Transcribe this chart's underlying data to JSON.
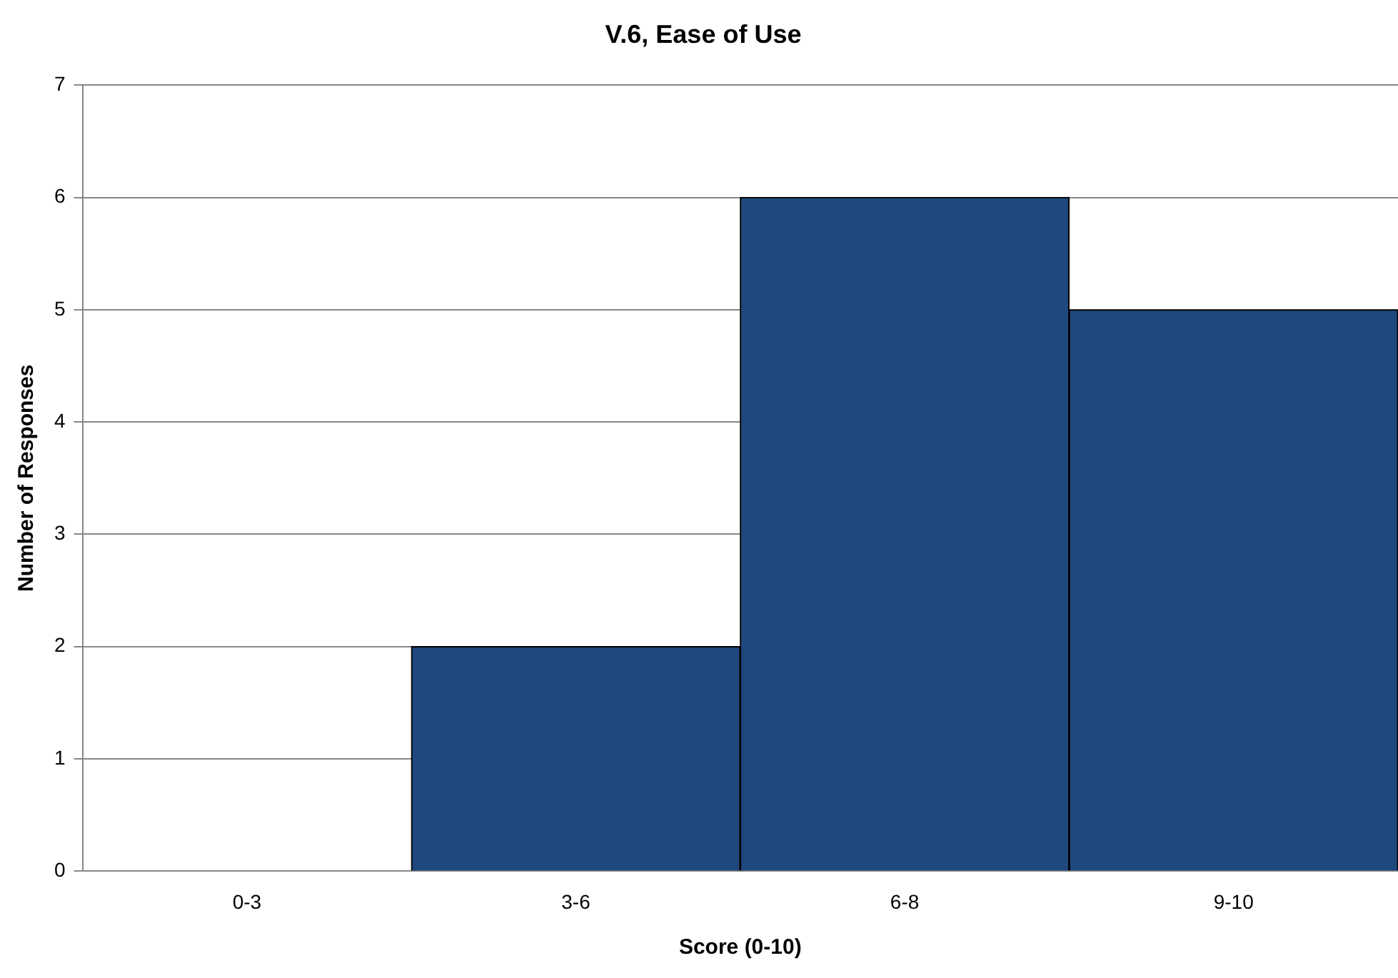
{
  "chart_data": {
    "type": "bar",
    "title": "V.6, Ease of Use",
    "xlabel": "Score (0-10)",
    "ylabel": "Number of Responses",
    "categories": [
      "0-3",
      "3-6",
      "6-8",
      "9-10"
    ],
    "values": [
      0,
      2,
      6,
      5
    ],
    "color": "#1f497d",
    "ylim": [
      0,
      7
    ],
    "yticks": [
      0,
      1,
      2,
      3,
      4,
      5,
      6,
      7
    ],
    "grid": "y",
    "legend": false
  }
}
